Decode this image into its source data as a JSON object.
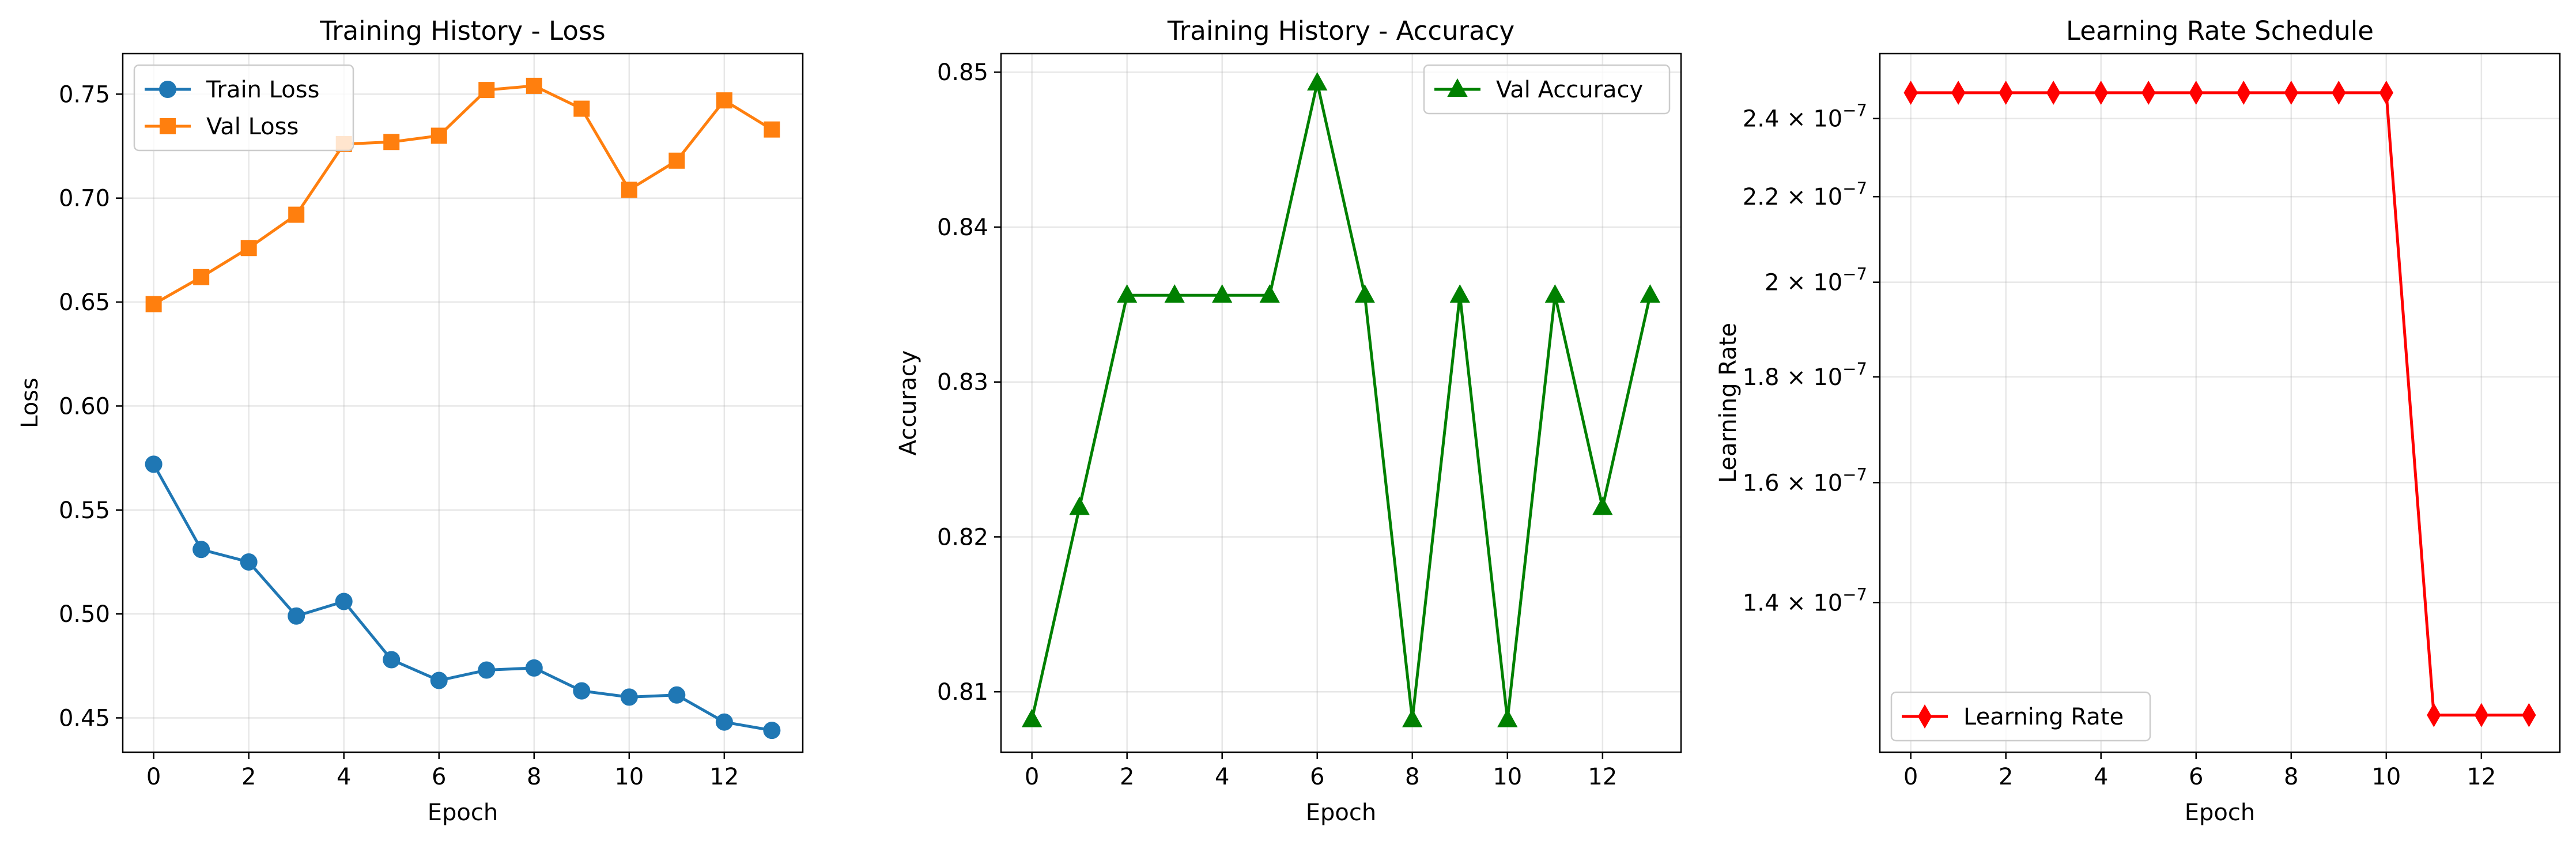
{
  "colors": {
    "train_loss": "#1f77b4",
    "val_loss": "#ff7f0e",
    "val_accuracy": "#008000",
    "learning_rate": "#ff0000"
  },
  "chart_data": [
    {
      "type": "line",
      "title": "Training History - Loss",
      "xlabel": "Epoch",
      "ylabel": "Loss",
      "x": [
        0,
        1,
        2,
        3,
        4,
        5,
        6,
        7,
        8,
        9,
        10,
        11,
        12,
        13
      ],
      "xlim": [
        -0.65,
        13.65
      ],
      "ylim": [
        0.4335,
        0.7695
      ],
      "xticks": [
        0,
        2,
        4,
        6,
        8,
        10,
        12
      ],
      "xtick_labels": [
        "0",
        "2",
        "4",
        "6",
        "8",
        "10",
        "12"
      ],
      "yticks": [
        0.45,
        0.5,
        0.55,
        0.6,
        0.65,
        0.7,
        0.75
      ],
      "ytick_labels": [
        "0.45",
        "0.50",
        "0.55",
        "0.60",
        "0.65",
        "0.70",
        "0.75"
      ],
      "y_scale": "linear",
      "grid": true,
      "legend_position": "upper left",
      "series": [
        {
          "name": "Train Loss",
          "color": "#1f77b4",
          "marker": "circle",
          "values": [
            0.572,
            0.531,
            0.525,
            0.499,
            0.506,
            0.478,
            0.468,
            0.473,
            0.474,
            0.463,
            0.46,
            0.461,
            0.448,
            0.444
          ]
        },
        {
          "name": "Val Loss",
          "color": "#ff7f0e",
          "marker": "square",
          "values": [
            0.649,
            0.662,
            0.676,
            0.692,
            0.726,
            0.727,
            0.73,
            0.752,
            0.754,
            0.743,
            0.704,
            0.718,
            0.747,
            0.733
          ]
        }
      ]
    },
    {
      "type": "line",
      "title": "Training History - Accuracy",
      "xlabel": "Epoch",
      "ylabel": "Accuracy",
      "x": [
        0,
        1,
        2,
        3,
        4,
        5,
        6,
        7,
        8,
        9,
        10,
        11,
        12,
        13
      ],
      "xlim": [
        -0.65,
        13.65
      ],
      "ylim": [
        0.8061,
        0.8512
      ],
      "xticks": [
        0,
        2,
        4,
        6,
        8,
        10,
        12
      ],
      "xtick_labels": [
        "0",
        "2",
        "4",
        "6",
        "8",
        "10",
        "12"
      ],
      "yticks": [
        0.81,
        0.82,
        0.83,
        0.84,
        0.85
      ],
      "ytick_labels": [
        "0.81",
        "0.82",
        "0.83",
        "0.84",
        "0.85"
      ],
      "y_scale": "linear",
      "grid": true,
      "legend_position": "upper right",
      "series": [
        {
          "name": "Val Accuracy",
          "color": "#008000",
          "marker": "triangle",
          "values": [
            0.8082,
            0.8219,
            0.8356,
            0.8356,
            0.8356,
            0.8356,
            0.8493,
            0.8356,
            0.8082,
            0.8356,
            0.8082,
            0.8356,
            0.8219,
            0.8356
          ]
        }
      ]
    },
    {
      "type": "line",
      "title": "Learning Rate Schedule",
      "xlabel": "Epoch",
      "ylabel": "Learning Rate",
      "x": [
        0,
        1,
        2,
        3,
        4,
        5,
        6,
        7,
        8,
        9,
        10,
        11,
        12,
        13
      ],
      "xlim": [
        -0.65,
        13.65
      ],
      "ylim": [
        1.185e-07,
        2.58e-07
      ],
      "xticks": [
        0,
        2,
        4,
        6,
        8,
        10,
        12
      ],
      "xtick_labels": [
        "0",
        "2",
        "4",
        "6",
        "8",
        "10",
        "12"
      ],
      "yticks": [
        1.4e-07,
        1.6e-07,
        1.8e-07,
        2e-07,
        2.2e-07,
        2.4e-07
      ],
      "ytick_labels": [
        {
          "mantissa": "1.4",
          "base": "10",
          "exponent": "−7"
        },
        {
          "mantissa": "1.6",
          "base": "10",
          "exponent": "−7"
        },
        {
          "mantissa": "1.8",
          "base": "10",
          "exponent": "−7"
        },
        {
          "mantissa": "2",
          "base": "10",
          "exponent": "−7"
        },
        {
          "mantissa": "2.2",
          "base": "10",
          "exponent": "−7"
        },
        {
          "mantissa": "2.4",
          "base": "10",
          "exponent": "−7"
        }
      ],
      "y_scale": "log",
      "grid": true,
      "legend_position": "lower left",
      "series": [
        {
          "name": "Learning Rate",
          "color": "#ff0000",
          "marker": "diamond",
          "values": [
            2.47e-07,
            2.47e-07,
            2.47e-07,
            2.47e-07,
            2.47e-07,
            2.47e-07,
            2.47e-07,
            2.47e-07,
            2.47e-07,
            2.47e-07,
            2.47e-07,
            1.235e-07,
            1.235e-07,
            1.235e-07
          ]
        }
      ]
    }
  ]
}
